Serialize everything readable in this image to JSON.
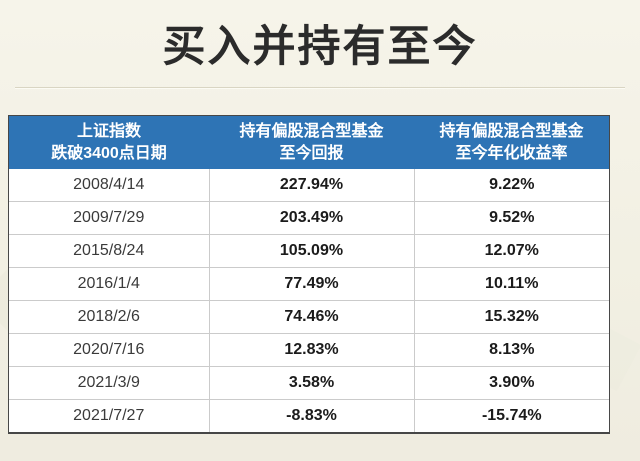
{
  "title": "买入并持有至今",
  "table": {
    "columns": [
      {
        "line1": "上证指数",
        "line2": "跌破3400点日期"
      },
      {
        "line1": "持有偏股混合型基金",
        "line2": "至今回报"
      },
      {
        "line1": "持有偏股混合型基金",
        "line2": "至今年化收益率"
      }
    ],
    "rows": [
      {
        "date": "2008/4/14",
        "return": "227.94%",
        "annualized": "9.22%"
      },
      {
        "date": "2009/7/29",
        "return": "203.49%",
        "annualized": "9.52%"
      },
      {
        "date": "2015/8/24",
        "return": "105.09%",
        "annualized": "12.07%"
      },
      {
        "date": "2016/1/4",
        "return": "77.49%",
        "annualized": "10.11%"
      },
      {
        "date": "2018/2/6",
        "return": "74.46%",
        "annualized": "15.32%"
      },
      {
        "date": "2020/7/16",
        "return": "12.83%",
        "annualized": "8.13%"
      },
      {
        "date": "2021/3/9",
        "return": "3.58%",
        "annualized": "3.90%"
      },
      {
        "date": "2021/7/27",
        "return": "-8.83%",
        "annualized": "-15.74%"
      }
    ]
  },
  "colors": {
    "background": "#f2f0e3",
    "header_bg": "#2e74b5",
    "header_text": "#ffffff",
    "grid_line": "#cbcbcb",
    "outer_border": "#474747",
    "title_text": "#2b2b2b"
  },
  "chart_data": {
    "type": "table",
    "title": "买入并持有至今",
    "columns": [
      "上证指数跌破3400点日期",
      "持有偏股混合型基金至今回报",
      "持有偏股混合型基金至今年化收益率"
    ],
    "rows": [
      [
        "2008/4/14",
        "227.94%",
        "9.22%"
      ],
      [
        "2009/7/29",
        "203.49%",
        "9.52%"
      ],
      [
        "2015/8/24",
        "105.09%",
        "12.07%"
      ],
      [
        "2016/1/4",
        "77.49%",
        "10.11%"
      ],
      [
        "2018/2/6",
        "74.46%",
        "15.32%"
      ],
      [
        "2020/7/16",
        "12.83%",
        "8.13%"
      ],
      [
        "2021/3/9",
        "3.58%",
        "3.90%"
      ],
      [
        "2021/7/27",
        "-8.83%",
        "-15.74%"
      ]
    ]
  }
}
